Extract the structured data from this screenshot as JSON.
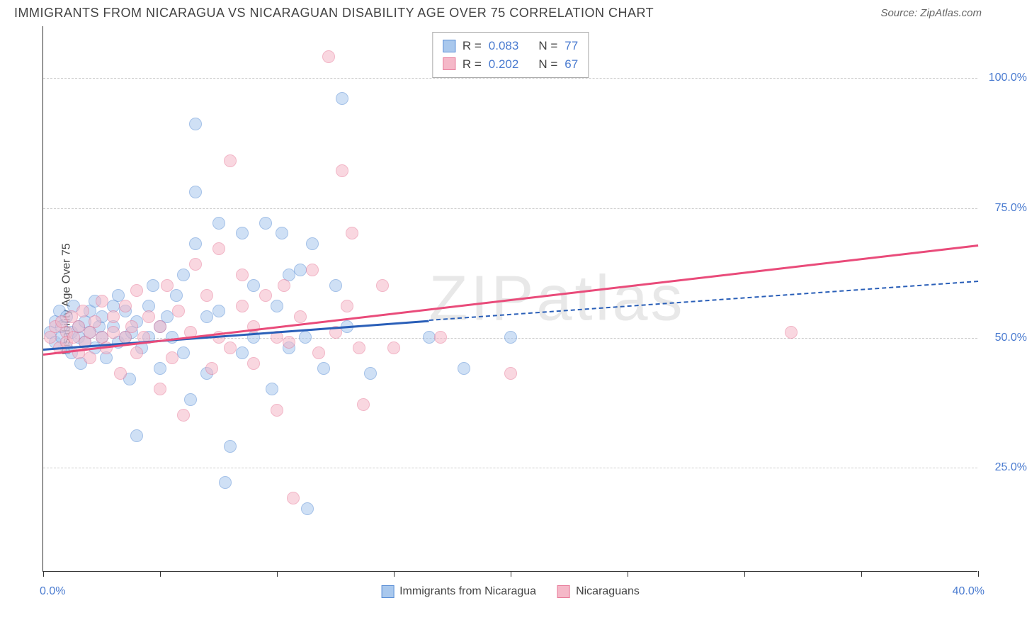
{
  "header": {
    "title": "IMMIGRANTS FROM NICARAGUA VS NICARAGUAN DISABILITY AGE OVER 75 CORRELATION CHART",
    "source": "Source: ZipAtlas.com"
  },
  "chart": {
    "type": "scatter",
    "watermark": "ZIPatlas",
    "y_axis_label": "Disability Age Over 75",
    "xlim": [
      0,
      40
    ],
    "ylim": [
      5,
      110
    ],
    "x_label_min": "0.0%",
    "x_label_max": "40.0%",
    "y_ticks": [
      {
        "value": 25,
        "label": "25.0%"
      },
      {
        "value": 50,
        "label": "50.0%"
      },
      {
        "value": 75,
        "label": "75.0%"
      },
      {
        "value": 100,
        "label": "100.0%"
      }
    ],
    "x_tick_positions": [
      0,
      5,
      10,
      15,
      20,
      25,
      30,
      35,
      40
    ],
    "background_color": "#ffffff",
    "grid_color": "#cccccc",
    "point_radius": 9,
    "point_opacity": 0.55,
    "series": [
      {
        "name": "Immigrants from Nicaragua",
        "fill_color": "#a9c8ed",
        "stroke_color": "#5b8fd6",
        "trend_color": "#2a5fb8",
        "R": "0.083",
        "N": "77",
        "trend": {
          "x1": 0,
          "y1": 48,
          "x2": 16.5,
          "y2": 53.5,
          "dashed_x2": 40,
          "dashed_y2": 61
        },
        "points": [
          [
            0.3,
            51
          ],
          [
            0.5,
            53
          ],
          [
            0.5,
            49
          ],
          [
            0.7,
            55
          ],
          [
            0.8,
            50
          ],
          [
            0.8,
            52
          ],
          [
            1.0,
            48
          ],
          [
            1.0,
            54
          ],
          [
            1.2,
            51
          ],
          [
            1.2,
            47
          ],
          [
            1.3,
            56
          ],
          [
            1.5,
            50
          ],
          [
            1.5,
            52
          ],
          [
            1.6,
            45
          ],
          [
            1.8,
            53
          ],
          [
            1.8,
            49
          ],
          [
            2.0,
            51
          ],
          [
            2.0,
            55
          ],
          [
            2.2,
            57
          ],
          [
            2.2,
            48
          ],
          [
            2.4,
            52
          ],
          [
            2.5,
            50
          ],
          [
            2.5,
            54
          ],
          [
            2.7,
            46
          ],
          [
            3.0,
            52
          ],
          [
            3.0,
            56
          ],
          [
            3.2,
            49
          ],
          [
            3.2,
            58
          ],
          [
            3.5,
            50
          ],
          [
            3.5,
            55
          ],
          [
            3.7,
            42
          ],
          [
            3.8,
            51
          ],
          [
            4.0,
            53
          ],
          [
            4.0,
            31
          ],
          [
            4.2,
            48
          ],
          [
            4.5,
            56
          ],
          [
            4.5,
            50
          ],
          [
            4.7,
            60
          ],
          [
            5.0,
            52
          ],
          [
            5.0,
            44
          ],
          [
            5.3,
            54
          ],
          [
            5.5,
            50
          ],
          [
            5.7,
            58
          ],
          [
            6.0,
            47
          ],
          [
            6.0,
            62
          ],
          [
            6.3,
            38
          ],
          [
            6.5,
            78
          ],
          [
            6.5,
            68
          ],
          [
            6.5,
            91
          ],
          [
            7.0,
            43
          ],
          [
            7.0,
            54
          ],
          [
            7.5,
            72
          ],
          [
            7.5,
            55
          ],
          [
            7.8,
            22
          ],
          [
            8.0,
            29
          ],
          [
            8.5,
            70
          ],
          [
            8.5,
            47
          ],
          [
            9.0,
            60
          ],
          [
            9.0,
            50
          ],
          [
            9.5,
            72
          ],
          [
            9.8,
            40
          ],
          [
            10.0,
            56
          ],
          [
            10.2,
            70
          ],
          [
            10.5,
            62
          ],
          [
            10.5,
            48
          ],
          [
            11.0,
            63
          ],
          [
            11.2,
            50
          ],
          [
            11.3,
            17
          ],
          [
            11.5,
            68
          ],
          [
            12.0,
            44
          ],
          [
            12.5,
            60
          ],
          [
            12.8,
            96
          ],
          [
            13.0,
            52
          ],
          [
            14.0,
            43
          ],
          [
            16.5,
            50
          ],
          [
            18.0,
            44
          ],
          [
            20.0,
            50
          ]
        ]
      },
      {
        "name": "Nicaraguans",
        "fill_color": "#f5b8c8",
        "stroke_color": "#e87b9a",
        "trend_color": "#e94b7a",
        "R": "0.202",
        "N": "67",
        "trend": {
          "x1": 0,
          "y1": 47,
          "x2": 40,
          "y2": 68,
          "dashed_x2": null,
          "dashed_y2": null
        },
        "points": [
          [
            0.3,
            50
          ],
          [
            0.5,
            52
          ],
          [
            0.7,
            48
          ],
          [
            0.8,
            53
          ],
          [
            1.0,
            51
          ],
          [
            1.0,
            49
          ],
          [
            1.2,
            54
          ],
          [
            1.3,
            50
          ],
          [
            1.5,
            47
          ],
          [
            1.5,
            52
          ],
          [
            1.7,
            55
          ],
          [
            1.8,
            49
          ],
          [
            2.0,
            51
          ],
          [
            2.0,
            46
          ],
          [
            2.2,
            53
          ],
          [
            2.5,
            50
          ],
          [
            2.5,
            57
          ],
          [
            2.7,
            48
          ],
          [
            3.0,
            51
          ],
          [
            3.0,
            54
          ],
          [
            3.3,
            43
          ],
          [
            3.5,
            50
          ],
          [
            3.5,
            56
          ],
          [
            3.8,
            52
          ],
          [
            4.0,
            47
          ],
          [
            4.0,
            59
          ],
          [
            4.3,
            50
          ],
          [
            4.5,
            54
          ],
          [
            5.0,
            40
          ],
          [
            5.0,
            52
          ],
          [
            5.3,
            60
          ],
          [
            5.5,
            46
          ],
          [
            5.8,
            55
          ],
          [
            6.0,
            35
          ],
          [
            6.3,
            51
          ],
          [
            6.5,
            64
          ],
          [
            7.0,
            58
          ],
          [
            7.2,
            44
          ],
          [
            7.5,
            67
          ],
          [
            7.5,
            50
          ],
          [
            8.0,
            84
          ],
          [
            8.0,
            48
          ],
          [
            8.5,
            56
          ],
          [
            8.5,
            62
          ],
          [
            9.0,
            52
          ],
          [
            9.0,
            45
          ],
          [
            9.5,
            58
          ],
          [
            10.0,
            50
          ],
          [
            10.0,
            36
          ],
          [
            10.3,
            60
          ],
          [
            10.5,
            49
          ],
          [
            10.7,
            19
          ],
          [
            11.0,
            54
          ],
          [
            11.5,
            63
          ],
          [
            11.8,
            47
          ],
          [
            12.2,
            104
          ],
          [
            12.5,
            51
          ],
          [
            12.8,
            82
          ],
          [
            13.0,
            56
          ],
          [
            13.2,
            70
          ],
          [
            13.5,
            48
          ],
          [
            13.7,
            37
          ],
          [
            14.5,
            60
          ],
          [
            15.0,
            48
          ],
          [
            17.0,
            50
          ],
          [
            20.0,
            43
          ],
          [
            32.0,
            51
          ]
        ]
      }
    ]
  },
  "bottom_legend": [
    {
      "label": "Immigrants from Nicaragua",
      "fill": "#a9c8ed",
      "stroke": "#5b8fd6"
    },
    {
      "label": "Nicaraguans",
      "fill": "#f5b8c8",
      "stroke": "#e87b9a"
    }
  ]
}
